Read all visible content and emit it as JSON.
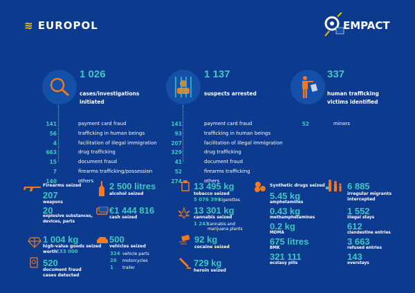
{
  "header": {
    "europol_logo": "EUROPOL",
    "empact_logo": "EMPACT"
  },
  "colors": {
    "background": "#0c3a8e",
    "accent_teal": "#3ec7c1",
    "accent_orange": "#f07a1e"
  },
  "summary": [
    {
      "icon": "magnifier-icon",
      "value": "1 026",
      "label1": "cases/investigations",
      "label2": "initiated",
      "items": [
        {
          "n": "141",
          "t": "payment card fraud"
        },
        {
          "n": "56",
          "t": "trafficking in human beings"
        },
        {
          "n": "4",
          "t": "facilitation of illegal immigration"
        },
        {
          "n": "663",
          "t": "drug trafficking"
        },
        {
          "n": "15",
          "t": "document fraud"
        },
        {
          "n": "7",
          "t": "firearms trafficking/possession"
        },
        {
          "n": "140",
          "t": "others"
        }
      ]
    },
    {
      "icon": "prisoner-icon",
      "value": "1 137",
      "label1": "suspects arrested",
      "label2": "",
      "items": [
        {
          "n": "141",
          "t": "payment card fraud"
        },
        {
          "n": "93",
          "t": "trafficking in human beings"
        },
        {
          "n": "207",
          "t": "facilitation of illegal immigration"
        },
        {
          "n": "329",
          "t": "drug trafficking"
        },
        {
          "n": "41",
          "t": "document fraud"
        },
        {
          "n": "52",
          "t": "firearms trafficking"
        },
        {
          "n": "274",
          "t": "others"
        }
      ]
    },
    {
      "icon": "victim-icon",
      "value": "337",
      "label1": "human trafficking",
      "label2": "victims identified",
      "items": [
        {
          "n": "52",
          "t": "minors"
        }
      ]
    }
  ],
  "seizures": {
    "firearms": {
      "title": "Firearms seized",
      "v1": "207",
      "l1": "weapons",
      "v2": "20",
      "l2a": "explosive substances,",
      "l2b": "devices, parts"
    },
    "alcohol": {
      "value": "2 500 litres",
      "label": "alcohol seized"
    },
    "cash": {
      "value": "€1 444 816",
      "label": "cash seized"
    },
    "goods": {
      "value": "1 004 kg",
      "label": "high-value goods seized",
      "worth_label": "worth",
      "worth": "€33 000"
    },
    "documents": {
      "value": "520",
      "l1": "document fraud",
      "l2": "cases detected"
    },
    "vehicles": {
      "value": "500",
      "label": "vehicles seized",
      "items": [
        {
          "n": "324",
          "t": "vehicle parts"
        },
        {
          "n": "26",
          "t": "motorcycles"
        },
        {
          "n": "1",
          "t": "trailer"
        }
      ]
    },
    "tobacco": {
      "value": "13 495 kg",
      "label": "tobacco seized",
      "sub_n": "5 076 399",
      "sub_t": "cigarettes"
    },
    "cannabis": {
      "value": "13 301 kg",
      "label": "cannabis seized",
      "sub_n": "1 243",
      "sub_t1": "cannabis and",
      "sub_t2": "marijuana plants"
    },
    "cocaine": {
      "value": "92 kg",
      "label": "cocaine seized"
    },
    "heroin": {
      "value": "729 kg",
      "label": "heroin seized"
    },
    "synthetic": {
      "title": "Synthetic drugs seized",
      "items": [
        {
          "v": "5.45 kg",
          "l": "amphetamines"
        },
        {
          "v": "0.43 kg",
          "l": "methamphetamines"
        },
        {
          "v": "0.2 kg",
          "l": "MDMA"
        },
        {
          "v": "675 litres",
          "l": "BMK"
        },
        {
          "v": "321 111",
          "l": "ecstasy pills"
        }
      ]
    },
    "migrants": {
      "value": "6 885",
      "l1": "irregular migrants",
      "l2": "intercepted",
      "items": [
        {
          "v": "1 552",
          "l": "illegal stays"
        },
        {
          "v": "612",
          "l": "clandestine entries"
        },
        {
          "v": "3 663",
          "l": "refused entries"
        },
        {
          "v": "143",
          "l": "overstays"
        }
      ]
    }
  }
}
